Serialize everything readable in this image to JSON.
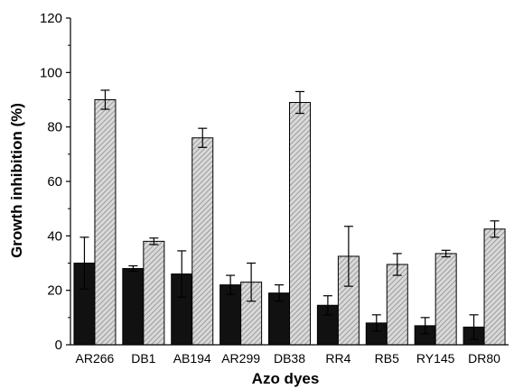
{
  "chart_data": {
    "type": "bar",
    "title": "",
    "xlabel": "Azo dyes",
    "ylabel": "Growth inhibition (%)",
    "ylim": [
      0,
      120
    ],
    "yticks": [
      0,
      20,
      40,
      60,
      80,
      100,
      120
    ],
    "grid": false,
    "legend": "none",
    "categories": [
      "AR266",
      "DB1",
      "AB194",
      "AR299",
      "DB38",
      "RR4",
      "RB5",
      "RY145",
      "DR80"
    ],
    "series": [
      {
        "fill": "solid",
        "color": "#111111",
        "values": [
          30,
          28,
          26,
          22,
          19,
          14.5,
          8,
          7,
          6.5
        ],
        "errors": [
          9.5,
          1,
          8.5,
          3.5,
          3,
          3.5,
          3,
          3,
          4.5
        ]
      },
      {
        "fill": "hatched",
        "color": "#bdbdbd",
        "values": [
          90,
          38,
          76,
          23,
          89,
          32.5,
          29.5,
          33.5,
          42.5
        ],
        "errors": [
          3.5,
          1.2,
          3.5,
          7,
          4,
          11,
          4,
          1.2,
          3
        ]
      }
    ]
  }
}
